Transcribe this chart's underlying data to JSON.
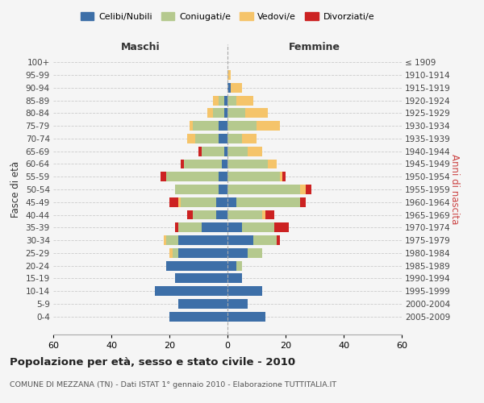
{
  "age_groups": [
    "100+",
    "95-99",
    "90-94",
    "85-89",
    "80-84",
    "75-79",
    "70-74",
    "65-69",
    "60-64",
    "55-59",
    "50-54",
    "45-49",
    "40-44",
    "35-39",
    "30-34",
    "25-29",
    "20-24",
    "15-19",
    "10-14",
    "5-9",
    "0-4"
  ],
  "year_labels": [
    "≤ 1909",
    "1910-1914",
    "1915-1919",
    "1920-1924",
    "1925-1929",
    "1930-1934",
    "1935-1939",
    "1940-1944",
    "1945-1949",
    "1950-1954",
    "1955-1959",
    "1960-1964",
    "1965-1969",
    "1970-1974",
    "1975-1979",
    "1980-1984",
    "1985-1989",
    "1990-1994",
    "1995-1999",
    "2000-2004",
    "2005-2009"
  ],
  "maschi_celibi": [
    0,
    0,
    0,
    1,
    1,
    3,
    3,
    1,
    2,
    3,
    3,
    4,
    4,
    9,
    17,
    17,
    21,
    18,
    25,
    17,
    20
  ],
  "maschi_coniugati": [
    0,
    0,
    0,
    2,
    4,
    9,
    8,
    8,
    13,
    18,
    15,
    12,
    8,
    8,
    4,
    2,
    0,
    0,
    0,
    0,
    0
  ],
  "maschi_vedovi": [
    0,
    0,
    0,
    2,
    2,
    1,
    3,
    0,
    0,
    0,
    0,
    1,
    0,
    0,
    1,
    1,
    0,
    0,
    0,
    0,
    0
  ],
  "maschi_divorziati": [
    0,
    0,
    0,
    0,
    0,
    0,
    0,
    1,
    1,
    2,
    0,
    3,
    2,
    1,
    0,
    0,
    0,
    0,
    0,
    0,
    0
  ],
  "femmine_celibi": [
    0,
    0,
    1,
    0,
    0,
    0,
    0,
    0,
    0,
    0,
    0,
    3,
    0,
    5,
    9,
    7,
    3,
    5,
    12,
    7,
    13
  ],
  "femmine_coniugati": [
    0,
    0,
    0,
    3,
    6,
    10,
    5,
    7,
    14,
    18,
    25,
    22,
    12,
    11,
    8,
    5,
    2,
    0,
    0,
    0,
    0
  ],
  "femmine_vedovi": [
    0,
    1,
    4,
    6,
    8,
    8,
    5,
    5,
    3,
    1,
    2,
    0,
    1,
    0,
    0,
    0,
    0,
    0,
    0,
    0,
    0
  ],
  "femmine_divorziati": [
    0,
    0,
    0,
    0,
    0,
    0,
    0,
    0,
    0,
    1,
    2,
    2,
    3,
    5,
    1,
    0,
    0,
    0,
    0,
    0,
    0
  ],
  "color_celibi": "#3d6fa8",
  "color_coniugati": "#b5c98e",
  "color_vedovi": "#f5c46a",
  "color_divorziati": "#cc2222",
  "xlim": 60,
  "title": "Popolazione per età, sesso e stato civile - 2010",
  "subtitle": "COMUNE DI MEZZANA (TN) - Dati ISTAT 1° gennaio 2010 - Elaborazione TUTTITALIA.IT",
  "ylabel_left": "Fasce di età",
  "ylabel_right": "Anni di nascita",
  "xlabel_left": "Maschi",
  "xlabel_right": "Femmine",
  "background_color": "#f5f5f5"
}
